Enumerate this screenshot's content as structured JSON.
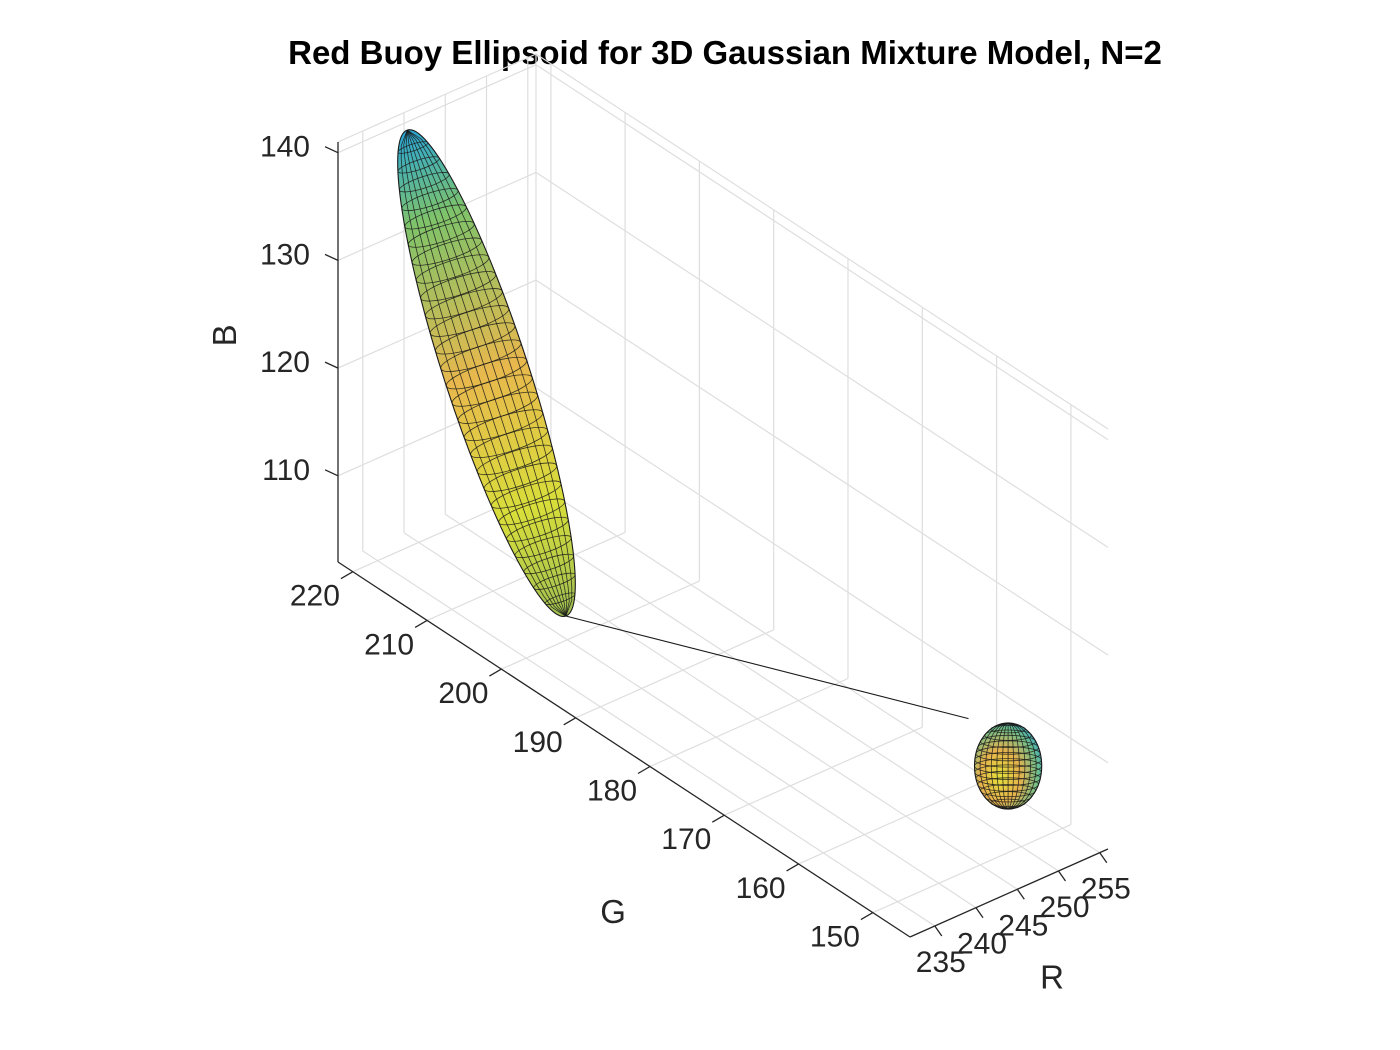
{
  "chart_data": {
    "type": "surface3d",
    "title": "Red Buoy Ellipsoid for 3D Gaussian Mixture Model, N=2",
    "xlabel": "R",
    "ylabel": "G",
    "zlabel": "B",
    "xlim": [
      232,
      256
    ],
    "ylim": [
      145,
      222
    ],
    "zlim": [
      102,
      141
    ],
    "xticks": [
      "235",
      "240",
      "245",
      "250",
      "255"
    ],
    "yticks": [
      "150",
      "160",
      "170",
      "180",
      "190",
      "200",
      "210",
      "220"
    ],
    "zticks": [
      "110",
      "120",
      "130",
      "140"
    ],
    "grid": true,
    "colormap": "parula",
    "ellipsoids": [
      {
        "name": "",
        "center": {
          "R": 241,
          "G": 212,
          "B": 121
        },
        "extent": {
          "R": 9,
          "G": 9,
          "B": 19
        }
      },
      {
        "name": "",
        "center": {
          "R": 252,
          "G": 154,
          "B": 107
        },
        "extent": {
          "R": 3.5,
          "G": 7,
          "B": 4
        }
      }
    ]
  }
}
